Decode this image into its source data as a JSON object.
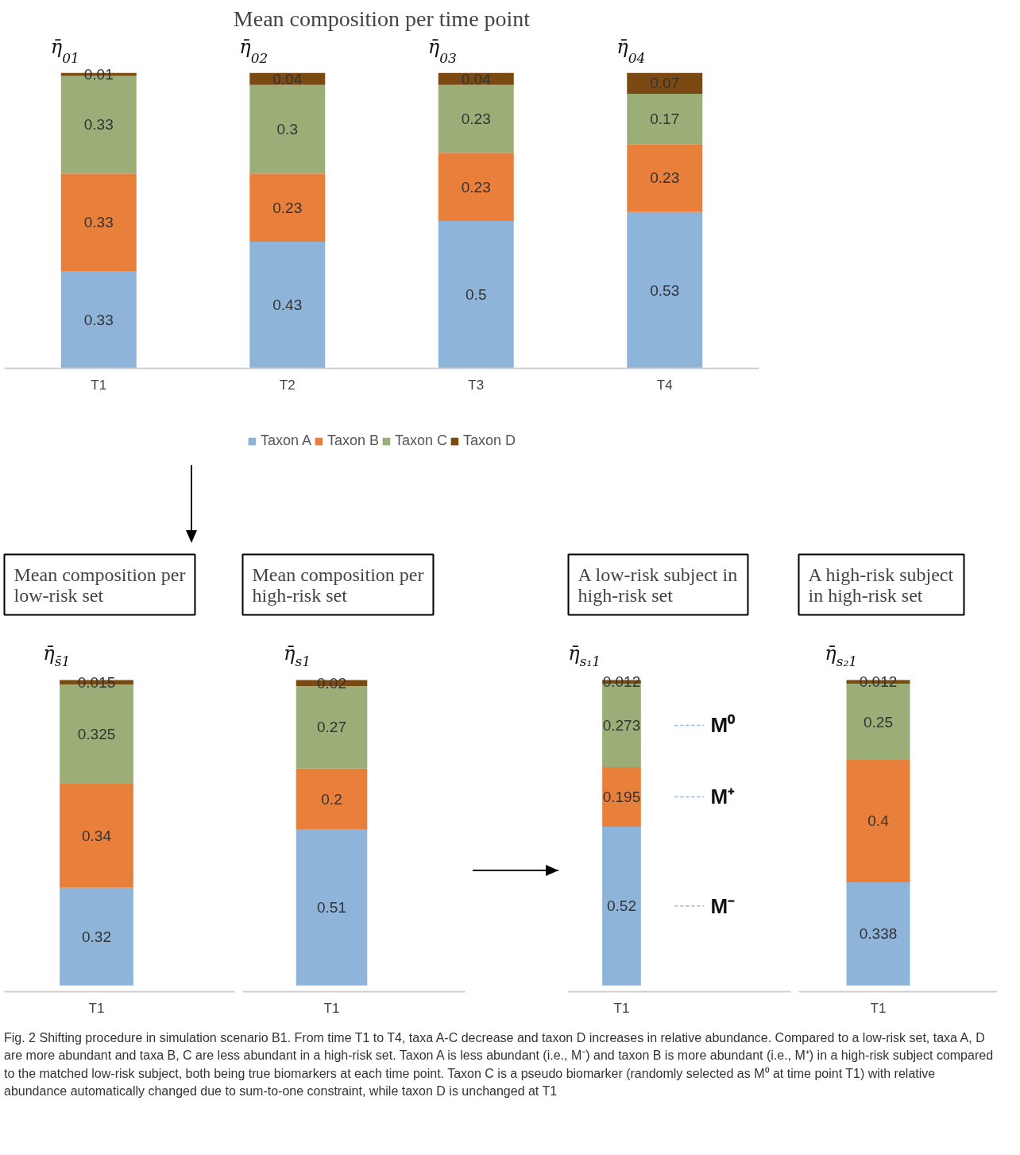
{
  "chart_data": [
    {
      "type": "bar",
      "title": "Mean composition per time point",
      "categories": [
        "T1",
        "T2",
        "T3",
        "T4"
      ],
      "stacked": true,
      "data_labels": true,
      "legend": "bottom",
      "grid": false,
      "series": [
        {
          "name": "Taxon A",
          "color": "#8fb4d9",
          "values": [
            0.33,
            0.43,
            0.5,
            0.53
          ]
        },
        {
          "name": "Taxon B",
          "color": "#e8803c",
          "values": [
            0.33,
            0.23,
            0.23,
            0.23
          ]
        },
        {
          "name": "Taxon C",
          "color": "#9cae78",
          "values": [
            0.33,
            0.3,
            0.23,
            0.17
          ]
        },
        {
          "name": "Taxon D",
          "color": "#7b4a12",
          "values": [
            0.01,
            0.04,
            0.04,
            0.07
          ]
        }
      ],
      "annotations": [
        "η̄$_{01}$",
        "η̄$_{02}$",
        "η̄$_{03}$",
        "η̄$_{04}$"
      ]
    },
    {
      "type": "bar",
      "title": "Mean composition per low-risk set",
      "categories": [
        "T1"
      ],
      "stacked": true,
      "data_labels": true,
      "grid": false,
      "series": [
        {
          "color": "#8fb4d9",
          "values": [
            0.32
          ]
        },
        {
          "color": "#e8803c",
          "values": [
            0.34
          ]
        },
        {
          "color": "#9cae78",
          "values": [
            0.325
          ]
        },
        {
          "color": "#7b4a12",
          "values": [
            0.015
          ]
        }
      ],
      "annotations": [
        "η̄$_{s̄1}$"
      ]
    },
    {
      "type": "bar",
      "title": "Mean composition per high-risk set",
      "categories": [
        "T1"
      ],
      "stacked": true,
      "data_labels": true,
      "grid": false,
      "series": [
        {
          "color": "#8fb4d9",
          "values": [
            0.51
          ]
        },
        {
          "color": "#e8803c",
          "values": [
            0.2
          ]
        },
        {
          "color": "#9cae78",
          "values": [
            0.27
          ]
        },
        {
          "color": "#7b4a12",
          "values": [
            0.02
          ]
        }
      ],
      "annotations": [
        "η̄$_{s1}$"
      ]
    },
    {
      "type": "bar",
      "title": "A low-risk subject in high-risk set",
      "categories": [
        "T1"
      ],
      "stacked": true,
      "data_labels": true,
      "grid": false,
      "series": [
        {
          "color": "#8fb4d9",
          "values": [
            0.52
          ]
        },
        {
          "color": "#e8803c",
          "values": [
            0.195
          ]
        },
        {
          "color": "#9cae78",
          "values": [
            0.273
          ]
        },
        {
          "color": "#7b4a12",
          "values": [
            0.012
          ]
        }
      ],
      "annotations": [
        "η̄$_{s₁1}$",
        "M⁰",
        "M⁺",
        "M⁻"
      ]
    },
    {
      "type": "bar",
      "title": "A high-risk subject in high-risk set",
      "categories": [
        "T1"
      ],
      "stacked": true,
      "data_labels": true,
      "grid": false,
      "series": [
        {
          "color": "#8fb4d9",
          "values": [
            0.338
          ]
        },
        {
          "color": "#e8803c",
          "values": [
            0.4
          ]
        },
        {
          "color": "#9cae78",
          "values": [
            0.25
          ]
        },
        {
          "color": "#7b4a12",
          "values": [
            0.012
          ]
        }
      ],
      "annotations": [
        "η̄$_{s₂1}$",
        "Fig. 2  Shifting procedure in simulation scenario B1. From time T1 to T4, taxa A-C decrease and taxon D increases in relative abundance. Compared to a low-risk set, taxa A, D are more abundant and taxa B, C are less abundant in a high-risk set. Taxon A is less abundant (i.e., M⁻) and taxon B is more abundant (i.e., M⁺) in a high-risk subject compared to the matched low-risk subject, both being true biomarkers at each time point. Taxon C is a pseudo biomarker (randomly selected as M⁰ at time point T1) with relative abundance automatically changed due to sum-to-one constraint, while taxon D is unchanged at T1"
      ]
    }
  ]
}
